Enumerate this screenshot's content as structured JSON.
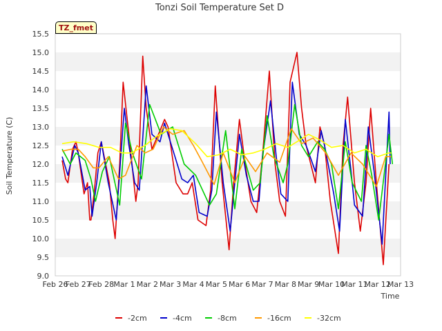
{
  "chart_data": {
    "type": "line",
    "title": "Tonzi Soil Temperature Set D",
    "xlabel": "Time",
    "ylabel": "Soil Temperature (C)",
    "site_label": "TZ_fmet",
    "x_ticks": [
      "Feb 26",
      "Feb 27",
      "Feb 28",
      "Mar 1",
      "Mar 2",
      "Mar 3",
      "Mar 4",
      "Mar 5",
      "Mar 6",
      "Mar 7",
      "Mar 8",
      "Mar 9",
      "Mar 10",
      "Mar 11",
      "Mar 12",
      "Mar 13"
    ],
    "xlim": [
      0,
      15
    ],
    "ylim": [
      9.0,
      15.5
    ],
    "y_ticks": [
      "9.0",
      "9.5",
      "10.0",
      "10.5",
      "11.0",
      "11.5",
      "12.0",
      "12.5",
      "13.0",
      "13.5",
      "14.0",
      "14.5",
      "15.0",
      "15.5"
    ],
    "grid": "horizontal alternating bands",
    "legend_position": "bottom",
    "x_unit": "days since Feb 26",
    "series": [
      {
        "name": "-2cm",
        "color": "#dd0000",
        "x": [
          0.3,
          0.45,
          0.55,
          0.75,
          0.9,
          1.0,
          1.25,
          1.4,
          1.5,
          1.55,
          1.7,
          1.85,
          2.0,
          2.35,
          2.5,
          2.6,
          2.8,
          2.95,
          3.25,
          3.5,
          3.6,
          3.8,
          3.95,
          4.2,
          4.55,
          4.75,
          4.9,
          5.25,
          5.55,
          5.75,
          5.95,
          6.2,
          6.55,
          6.75,
          6.95,
          7.25,
          7.55,
          7.75,
          8.0,
          8.25,
          8.5,
          8.75,
          9.0,
          9.3,
          9.55,
          9.75,
          10.0,
          10.2,
          10.5,
          10.7,
          10.9,
          11.3,
          11.5,
          11.7,
          11.95,
          12.3,
          12.5,
          12.7,
          13.0,
          13.25,
          13.5,
          13.7,
          13.95,
          14.25,
          14.5
        ],
        "y": [
          12.1,
          11.6,
          11.5,
          12.4,
          12.6,
          12.3,
          11.2,
          11.5,
          10.5,
          10.5,
          11.3,
          12.3,
          12.6,
          11.5,
          10.5,
          10.0,
          12.0,
          14.2,
          12.5,
          11.0,
          11.5,
          14.9,
          13.5,
          12.4,
          12.9,
          13.2,
          13.0,
          11.5,
          11.2,
          11.2,
          11.5,
          10.5,
          10.35,
          11.3,
          14.1,
          11.5,
          9.7,
          11.5,
          13.2,
          12.0,
          11.0,
          10.7,
          12.2,
          14.5,
          12.0,
          11.0,
          10.6,
          14.2,
          15.0,
          13.5,
          12.5,
          11.5,
          13.0,
          12.5,
          11.0,
          9.6,
          12.5,
          13.8,
          11.5,
          10.2,
          11.5,
          13.5,
          11.5,
          9.3,
          12.0
        ]
      },
      {
        "name": "-4cm",
        "color": "#0000cc",
        "x": [
          0.3,
          0.55,
          0.85,
          1.0,
          1.3,
          1.5,
          1.6,
          1.8,
          2.0,
          2.3,
          2.65,
          3.0,
          3.2,
          3.45,
          3.65,
          3.95,
          4.2,
          4.55,
          4.75,
          5.1,
          5.5,
          5.75,
          6.0,
          6.25,
          6.6,
          6.8,
          7.0,
          7.3,
          7.6,
          7.8,
          8.0,
          8.3,
          8.6,
          8.85,
          9.0,
          9.35,
          9.6,
          9.8,
          10.1,
          10.3,
          10.6,
          10.9,
          11.3,
          11.55,
          11.7,
          12.1,
          12.35,
          12.6,
          12.85,
          13.0,
          13.35,
          13.6,
          13.85,
          14.2,
          14.5,
          14.55
        ],
        "y": [
          12.2,
          11.7,
          12.5,
          12.3,
          11.3,
          11.4,
          10.6,
          11.5,
          12.6,
          11.5,
          10.5,
          13.5,
          12.5,
          11.5,
          11.3,
          14.1,
          12.8,
          12.6,
          13.1,
          12.4,
          11.6,
          11.5,
          11.7,
          10.7,
          10.6,
          11.3,
          13.4,
          11.5,
          10.2,
          11.5,
          12.8,
          11.7,
          11.0,
          11.0,
          12.2,
          13.7,
          12.2,
          11.2,
          11.0,
          14.2,
          12.8,
          12.5,
          11.8,
          12.9,
          12.5,
          11.2,
          10.2,
          13.2,
          11.8,
          10.9,
          10.6,
          13.0,
          11.8,
          9.85,
          13.4,
          12.0
        ]
      },
      {
        "name": "-8cm",
        "color": "#00cc00",
        "x": [
          0.3,
          0.65,
          0.9,
          1.3,
          1.55,
          1.75,
          2.05,
          2.35,
          2.8,
          3.05,
          3.35,
          3.75,
          4.1,
          4.6,
          5.1,
          5.6,
          6.1,
          6.7,
          7.0,
          7.4,
          7.8,
          8.1,
          8.6,
          8.9,
          9.2,
          9.5,
          9.9,
          10.1,
          10.4,
          10.7,
          11.0,
          11.4,
          11.7,
          12.0,
          12.3,
          12.6,
          12.9,
          13.3,
          13.5,
          13.75,
          14.05,
          14.5,
          14.65
        ],
        "y": [
          12.4,
          12.0,
          12.3,
          12.1,
          11.6,
          11.0,
          11.8,
          12.2,
          10.9,
          13.1,
          12.3,
          11.6,
          13.6,
          12.8,
          13.0,
          12.0,
          11.7,
          10.9,
          11.2,
          12.9,
          10.8,
          12.4,
          11.3,
          11.5,
          13.3,
          12.2,
          11.5,
          12.0,
          13.6,
          12.5,
          12.2,
          12.6,
          12.4,
          12.0,
          10.8,
          12.6,
          11.5,
          11.0,
          12.5,
          11.7,
          10.5,
          12.8,
          12.0
        ]
      },
      {
        "name": "-16cm",
        "color": "#ff9900",
        "x": [
          0.3,
          0.7,
          1.0,
          1.3,
          1.65,
          1.9,
          2.3,
          2.75,
          3.05,
          3.55,
          3.9,
          4.25,
          4.7,
          5.1,
          5.6,
          6.0,
          6.35,
          6.9,
          7.3,
          7.8,
          8.25,
          8.7,
          9.2,
          9.75,
          10.25,
          10.7,
          11.2,
          11.75,
          12.3,
          12.85,
          13.35,
          13.95,
          14.35,
          14.6
        ],
        "y": [
          12.35,
          12.4,
          12.4,
          12.2,
          11.9,
          11.9,
          12.2,
          11.6,
          11.7,
          12.5,
          12.3,
          12.4,
          13.0,
          12.8,
          12.9,
          12.5,
          12.1,
          11.45,
          12.3,
          11.5,
          12.2,
          11.8,
          12.3,
          12.05,
          12.95,
          12.55,
          12.7,
          12.3,
          11.7,
          12.3,
          12.0,
          11.4,
          12.2,
          12.2
        ]
      },
      {
        "name": "-32cm",
        "color": "#ffff00",
        "x": [
          0.3,
          0.8,
          1.35,
          1.9,
          2.4,
          2.9,
          3.3,
          3.9,
          4.4,
          5.0,
          5.5,
          6.1,
          6.6,
          7.1,
          7.6,
          8.1,
          8.6,
          9.1,
          9.6,
          10.1,
          10.5,
          11.0,
          11.5,
          12.0,
          12.5,
          13.0,
          13.5,
          14.0,
          14.5,
          14.6
        ],
        "y": [
          12.55,
          12.6,
          12.55,
          12.45,
          12.45,
          12.3,
          12.3,
          12.5,
          12.75,
          12.95,
          12.9,
          12.55,
          12.2,
          12.25,
          12.4,
          12.25,
          12.3,
          12.4,
          12.55,
          12.45,
          12.6,
          12.8,
          12.65,
          12.45,
          12.5,
          12.3,
          12.4,
          12.2,
          12.3,
          12.3
        ]
      }
    ]
  }
}
